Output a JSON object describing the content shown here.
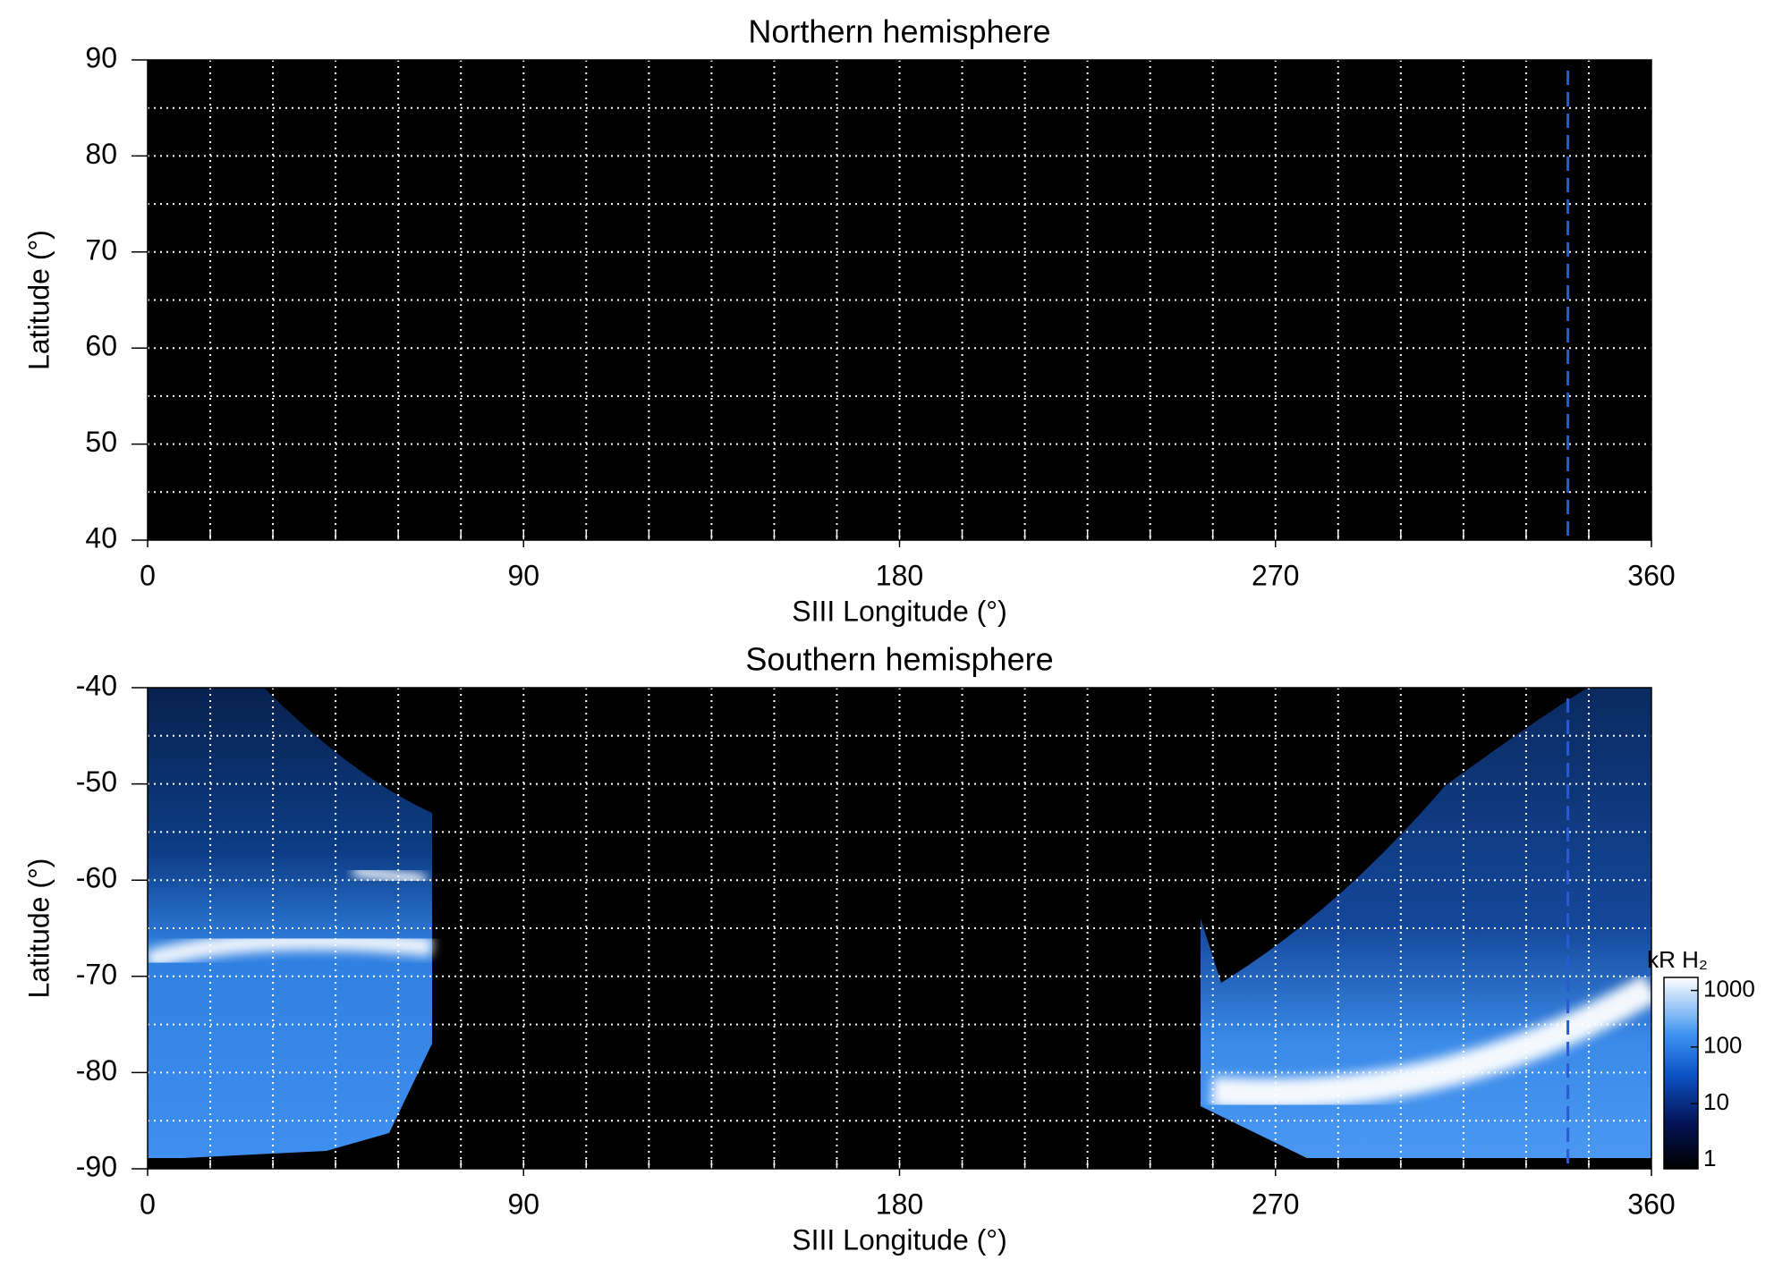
{
  "chart_data": [
    {
      "type": "heatmap",
      "title": "Northern hemisphere",
      "x_label": "SIII Longitude (°)",
      "y_label": "Latitude (°)",
      "xlim": [
        0,
        360
      ],
      "xticks": [
        0,
        90,
        180,
        270,
        360
      ],
      "ylim": [
        40,
        90
      ],
      "yticks": [
        40,
        50,
        60,
        70,
        80,
        90
      ],
      "grid": true,
      "xgrid": [
        15,
        30,
        45,
        60,
        75,
        90,
        105,
        120,
        135,
        150,
        165,
        180,
        195,
        210,
        225,
        240,
        255,
        270,
        285,
        300,
        315,
        330,
        345
      ],
      "ygrid": [
        45,
        50,
        55,
        60,
        65,
        70,
        75,
        80,
        85
      ],
      "marker_longitude": 340,
      "marker_color": "#2a5bd0"
    },
    {
      "type": "heatmap",
      "title": "Southern hemisphere",
      "x_label": "SIII Longitude (°)",
      "y_label": "Latitude (°)",
      "xlim": [
        0,
        360
      ],
      "xticks": [
        0,
        90,
        180,
        270,
        360
      ],
      "ylim": [
        -90,
        -40
      ],
      "yticks": [
        -90,
        -80,
        -70,
        -60,
        -50,
        -40
      ],
      "grid": true,
      "xgrid": [
        15,
        30,
        45,
        60,
        75,
        90,
        105,
        120,
        135,
        150,
        165,
        180,
        195,
        210,
        225,
        240,
        255,
        270,
        285,
        300,
        315,
        330,
        345
      ],
      "ygrid": [
        -85,
        -80,
        -75,
        -70,
        -65,
        -60,
        -55,
        -50,
        -45
      ],
      "marker_longitude": 340,
      "marker_color": "#2a5bd0",
      "colorbar": {
        "label": "kR H₂",
        "scale": "log",
        "lim": [
          0.7,
          1700
        ],
        "ticks": [
          1,
          10,
          100,
          1000
        ]
      }
    }
  ]
}
